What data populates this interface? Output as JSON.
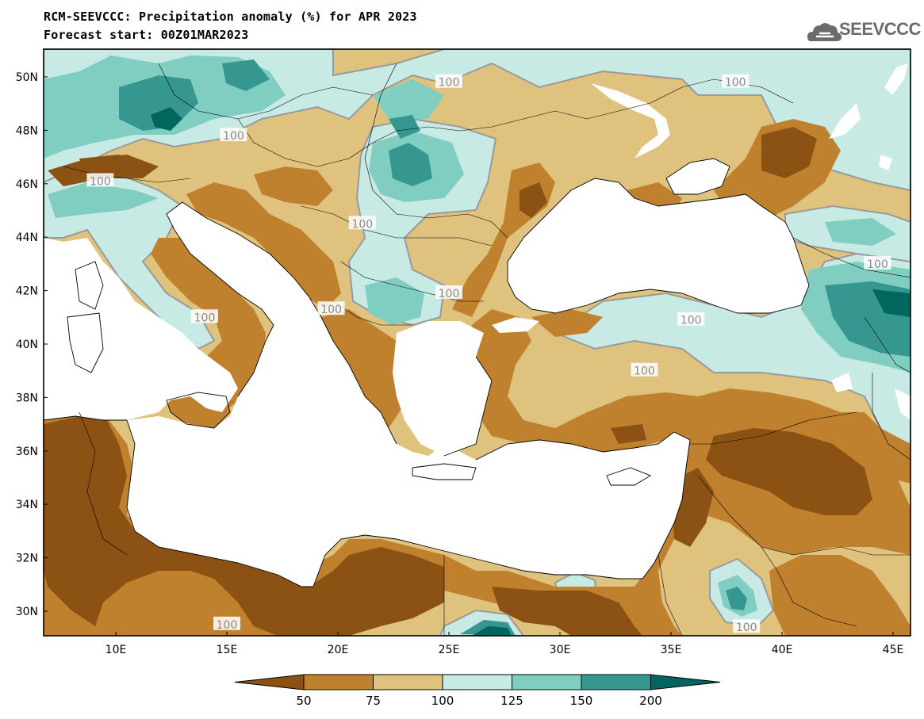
{
  "header": {
    "title": "RCM-SEEVCCC: Precipitation anomaly (%) for APR 2023",
    "subtitle": "Forecast start: 00Z01MAR2023",
    "logo_text": "SEEVCCC",
    "logo_icon": "cloud-icon"
  },
  "map": {
    "lat_ticks": [
      "50N",
      "48N",
      "46N",
      "44N",
      "42N",
      "40N",
      "38N",
      "36N",
      "34N",
      "32N",
      "30N"
    ],
    "lon_ticks": [
      "10E",
      "15E",
      "20E",
      "25E",
      "30E",
      "35E",
      "40E",
      "45E"
    ],
    "contour_labels": [
      {
        "text": "100",
        "lon": 25.0,
        "lat": 49.8
      },
      {
        "text": "100",
        "lon": 37.9,
        "lat": 49.8
      },
      {
        "text": "100",
        "lon": 15.3,
        "lat": 47.8
      },
      {
        "text": "100",
        "lon": 9.3,
        "lat": 46.1
      },
      {
        "text": "100",
        "lon": 21.1,
        "lat": 44.5
      },
      {
        "text": "100",
        "lon": 44.3,
        "lat": 43.0
      },
      {
        "text": "100",
        "lon": 25.0,
        "lat": 41.9
      },
      {
        "text": "100",
        "lon": 19.7,
        "lat": 41.3
      },
      {
        "text": "100",
        "lon": 14.0,
        "lat": 41.0
      },
      {
        "text": "100",
        "lon": 35.9,
        "lat": 40.9
      },
      {
        "text": "100",
        "lon": 33.8,
        "lat": 39.0
      },
      {
        "text": "100",
        "lon": 15.0,
        "lat": 29.5
      },
      {
        "text": "100",
        "lon": 38.4,
        "lat": 29.4
      }
    ],
    "colors": {
      "sea": "#ffffff",
      "below_50": "#8c5214",
      "c50_75": "#bf812d",
      "c75_100": "#dfc27d",
      "c100_125": "#c7eae5",
      "c125_150": "#80cdc1",
      "c150_200": "#35978f",
      "above_200": "#01665e",
      "contour_line": "#9a9a9a"
    }
  },
  "colorbar": {
    "ticks": [
      "50",
      "75",
      "100",
      "125",
      "150",
      "200"
    ],
    "colors": [
      "#8c5214",
      "#bf812d",
      "#dfc27d",
      "#c7eae5",
      "#80cdc1",
      "#35978f",
      "#01665e"
    ]
  }
}
